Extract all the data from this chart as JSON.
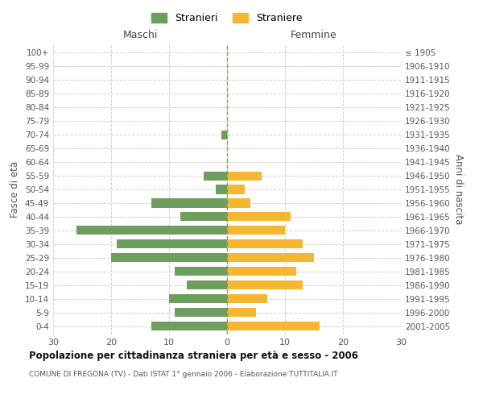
{
  "age_groups": [
    "100+",
    "95-99",
    "90-94",
    "85-89",
    "80-84",
    "75-79",
    "70-74",
    "65-69",
    "60-64",
    "55-59",
    "50-54",
    "45-49",
    "40-44",
    "35-39",
    "30-34",
    "25-29",
    "20-24",
    "15-19",
    "10-14",
    "5-9",
    "0-4"
  ],
  "birth_years": [
    "≤ 1905",
    "1906-1910",
    "1911-1915",
    "1916-1920",
    "1921-1925",
    "1926-1930",
    "1931-1935",
    "1936-1940",
    "1941-1945",
    "1946-1950",
    "1951-1955",
    "1956-1960",
    "1961-1965",
    "1966-1970",
    "1971-1975",
    "1976-1980",
    "1981-1985",
    "1986-1990",
    "1991-1995",
    "1996-2000",
    "2001-2005"
  ],
  "maschi": [
    0,
    0,
    0,
    0,
    0,
    0,
    1,
    0,
    0,
    4,
    2,
    13,
    8,
    26,
    19,
    20,
    9,
    7,
    10,
    9,
    13
  ],
  "femmine": [
    0,
    0,
    0,
    0,
    0,
    0,
    0,
    0,
    0,
    6,
    3,
    4,
    11,
    10,
    13,
    15,
    12,
    13,
    7,
    5,
    16
  ],
  "color_maschi": "#6e9e5e",
  "color_femmine": "#f5b731",
  "title": "Popolazione per cittadinanza straniera per età e sesso - 2006",
  "subtitle": "COMUNE DI FREGONA (TV) - Dati ISTAT 1° gennaio 2006 - Elaborazione TUTTITALIA.IT",
  "ylabel_left": "Fasce di età",
  "ylabel_right": "Anni di nascita",
  "xlabel_left": "Maschi",
  "xlabel_right": "Femmine",
  "legend_maschi": "Stranieri",
  "legend_femmine": "Straniere",
  "xlim": 30,
  "background_color": "#ffffff",
  "grid_color": "#cccccc"
}
